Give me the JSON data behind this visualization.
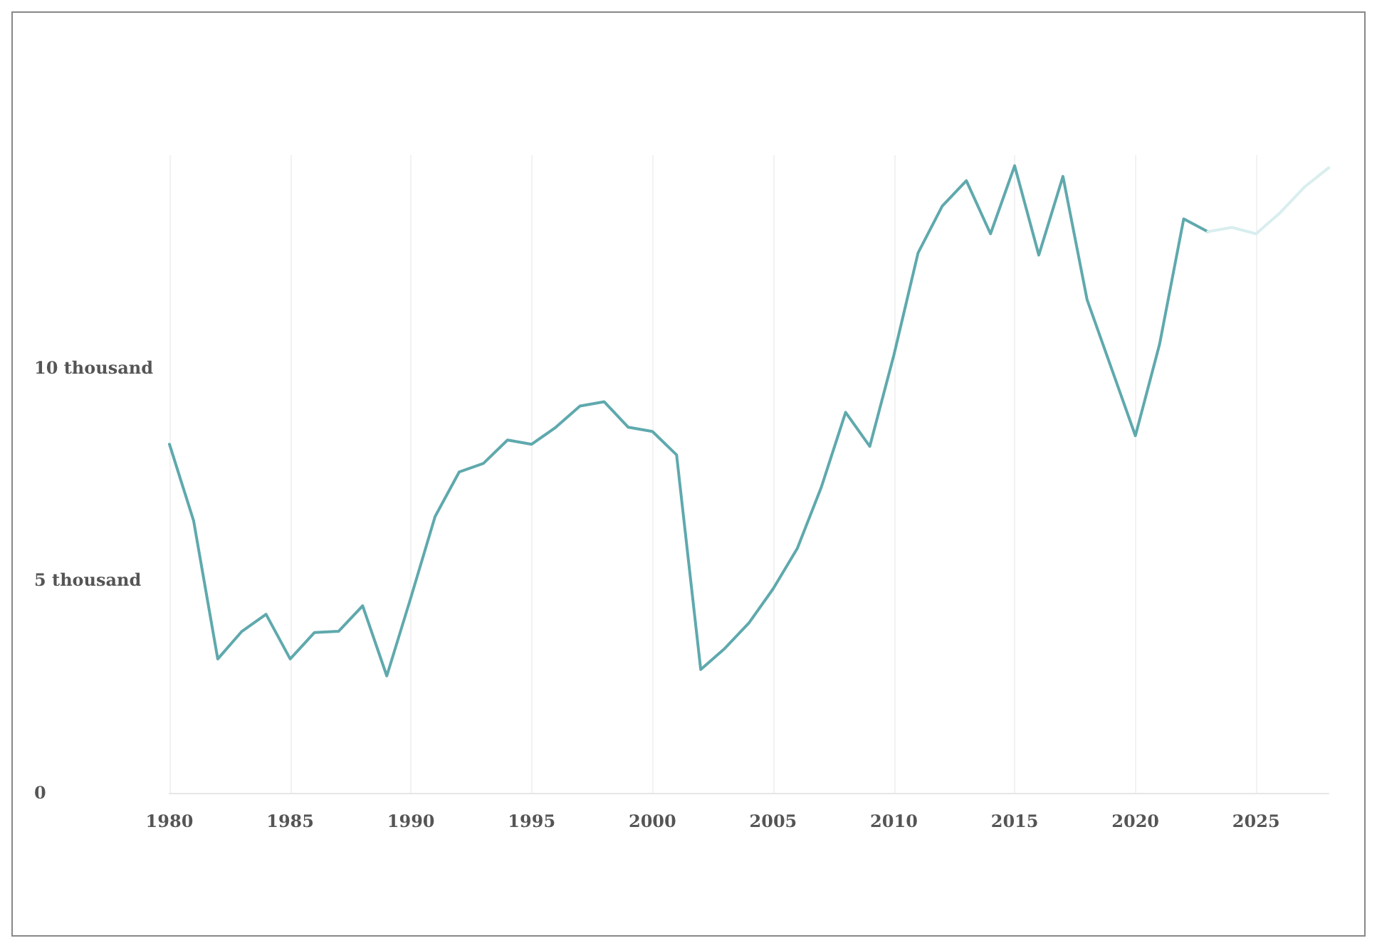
{
  "chart_data": {
    "type": "line",
    "xlim": [
      1980,
      2028
    ],
    "xticks": [
      1980,
      1985,
      1990,
      1995,
      2000,
      2005,
      2010,
      2015,
      2020,
      2025
    ],
    "ylim": [
      0,
      15000
    ],
    "yticks": [
      0,
      {
        "value": 5000,
        "label": "5 thousand"
      },
      {
        "value": 10000,
        "label": "10 thousand"
      }
    ],
    "grid": "x",
    "marker": "none",
    "series": [
      {
        "color": "#5fa9ad",
        "x": [
          1980,
          1981,
          1982,
          1983,
          1984,
          1985,
          1986,
          1987,
          1988,
          1989,
          1990,
          1991,
          1992,
          1993,
          1994,
          1995,
          1996,
          1997,
          1998,
          1999,
          2000,
          2001,
          2002,
          2003,
          2004,
          2005,
          2006,
          2007,
          2008,
          2009,
          2010,
          2011,
          2012,
          2013,
          2014,
          2015,
          2016,
          2017,
          2018,
          2019,
          2020,
          2021,
          2022,
          2023
        ],
        "values": [
          8200,
          6400,
          3150,
          3800,
          4200,
          3150,
          3770,
          3800,
          4400,
          2750,
          4600,
          6500,
          7550,
          7750,
          8300,
          8200,
          8600,
          9100,
          9200,
          8600,
          8500,
          7950,
          2900,
          3400,
          4000,
          4800,
          5750,
          7200,
          8950,
          8150,
          10300,
          12700,
          13800,
          14400,
          13150,
          14750,
          12650,
          14500,
          11600,
          10000,
          8400,
          10550,
          13500,
          13200
        ]
      },
      {
        "color": "#d9eeee",
        "x": [
          2023,
          2024,
          2025,
          2026,
          2027,
          2028
        ],
        "values": [
          13200,
          13300,
          13150,
          13650,
          14250,
          14700
        ]
      }
    ]
  }
}
